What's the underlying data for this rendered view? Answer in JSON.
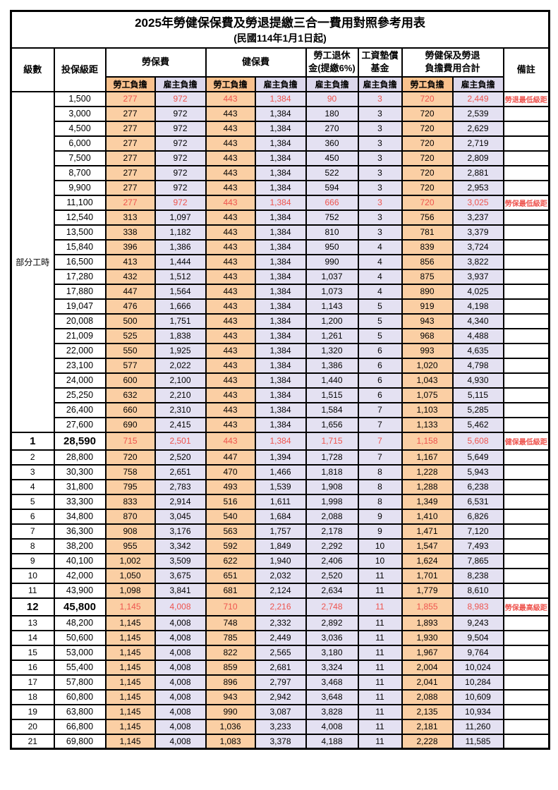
{
  "title": "2025年勞健保保費及勞退提繳三合一費用對照參考用表",
  "subtitle": "(民國114年1月1日起)",
  "colors": {
    "employee_column": "#f9c18d",
    "employer_column": "#dcd8ec",
    "employee_cell": "#fbcfa4",
    "employer_cell": "#e4e1f2",
    "highlight_text": "#ee544e",
    "border": "#000000"
  },
  "header": {
    "level": "級數",
    "bracket": "投保級距",
    "labor_insurance": "勞保費",
    "health_insurance": "健保費",
    "pension_line1": "勞工退休",
    "pension_line2": "金(提繳6%)",
    "wage_fund_line1": "工資墊償",
    "wage_fund_line2": "基金",
    "total_line1": "勞健保及勞退",
    "total_line2": "負擔費用合計",
    "remark": "備註",
    "employee": "勞工負擔",
    "employer": "雇主負擔"
  },
  "part_time_label": "部分工時",
  "part_time_row_count": 23,
  "rows": [
    {
      "level": "",
      "bracket": "1,500",
      "li_emp": "277",
      "li_er": "972",
      "hi_emp": "443",
      "hi_er": "1,384",
      "pension": "90",
      "fund": "3",
      "tot_emp": "720",
      "tot_er": "2,449",
      "remark": "勞退最低級距",
      "red": true,
      "big": false
    },
    {
      "level": "",
      "bracket": "3,000",
      "li_emp": "277",
      "li_er": "972",
      "hi_emp": "443",
      "hi_er": "1,384",
      "pension": "180",
      "fund": "3",
      "tot_emp": "720",
      "tot_er": "2,539",
      "remark": "",
      "red": false,
      "big": false
    },
    {
      "level": "",
      "bracket": "4,500",
      "li_emp": "277",
      "li_er": "972",
      "hi_emp": "443",
      "hi_er": "1,384",
      "pension": "270",
      "fund": "3",
      "tot_emp": "720",
      "tot_er": "2,629",
      "remark": "",
      "red": false,
      "big": false
    },
    {
      "level": "",
      "bracket": "6,000",
      "li_emp": "277",
      "li_er": "972",
      "hi_emp": "443",
      "hi_er": "1,384",
      "pension": "360",
      "fund": "3",
      "tot_emp": "720",
      "tot_er": "2,719",
      "remark": "",
      "red": false,
      "big": false
    },
    {
      "level": "",
      "bracket": "7,500",
      "li_emp": "277",
      "li_er": "972",
      "hi_emp": "443",
      "hi_er": "1,384",
      "pension": "450",
      "fund": "3",
      "tot_emp": "720",
      "tot_er": "2,809",
      "remark": "",
      "red": false,
      "big": false
    },
    {
      "level": "",
      "bracket": "8,700",
      "li_emp": "277",
      "li_er": "972",
      "hi_emp": "443",
      "hi_er": "1,384",
      "pension": "522",
      "fund": "3",
      "tot_emp": "720",
      "tot_er": "2,881",
      "remark": "",
      "red": false,
      "big": false
    },
    {
      "level": "",
      "bracket": "9,900",
      "li_emp": "277",
      "li_er": "972",
      "hi_emp": "443",
      "hi_er": "1,384",
      "pension": "594",
      "fund": "3",
      "tot_emp": "720",
      "tot_er": "2,953",
      "remark": "",
      "red": false,
      "big": false
    },
    {
      "level": "",
      "bracket": "11,100",
      "li_emp": "277",
      "li_er": "972",
      "hi_emp": "443",
      "hi_er": "1,384",
      "pension": "666",
      "fund": "3",
      "tot_emp": "720",
      "tot_er": "3,025",
      "remark": "勞保最低級距",
      "red": true,
      "big": false
    },
    {
      "level": "",
      "bracket": "12,540",
      "li_emp": "313",
      "li_er": "1,097",
      "hi_emp": "443",
      "hi_er": "1,384",
      "pension": "752",
      "fund": "3",
      "tot_emp": "756",
      "tot_er": "3,237",
      "remark": "",
      "red": false,
      "big": false
    },
    {
      "level": "",
      "bracket": "13,500",
      "li_emp": "338",
      "li_er": "1,182",
      "hi_emp": "443",
      "hi_er": "1,384",
      "pension": "810",
      "fund": "3",
      "tot_emp": "781",
      "tot_er": "3,379",
      "remark": "",
      "red": false,
      "big": false
    },
    {
      "level": "",
      "bracket": "15,840",
      "li_emp": "396",
      "li_er": "1,386",
      "hi_emp": "443",
      "hi_er": "1,384",
      "pension": "950",
      "fund": "4",
      "tot_emp": "839",
      "tot_er": "3,724",
      "remark": "",
      "red": false,
      "big": false
    },
    {
      "level": "",
      "bracket": "16,500",
      "li_emp": "413",
      "li_er": "1,444",
      "hi_emp": "443",
      "hi_er": "1,384",
      "pension": "990",
      "fund": "4",
      "tot_emp": "856",
      "tot_er": "3,822",
      "remark": "",
      "red": false,
      "big": false
    },
    {
      "level": "",
      "bracket": "17,280",
      "li_emp": "432",
      "li_er": "1,512",
      "hi_emp": "443",
      "hi_er": "1,384",
      "pension": "1,037",
      "fund": "4",
      "tot_emp": "875",
      "tot_er": "3,937",
      "remark": "",
      "red": false,
      "big": false
    },
    {
      "level": "",
      "bracket": "17,880",
      "li_emp": "447",
      "li_er": "1,564",
      "hi_emp": "443",
      "hi_er": "1,384",
      "pension": "1,073",
      "fund": "4",
      "tot_emp": "890",
      "tot_er": "4,025",
      "remark": "",
      "red": false,
      "big": false
    },
    {
      "level": "",
      "bracket": "19,047",
      "li_emp": "476",
      "li_er": "1,666",
      "hi_emp": "443",
      "hi_er": "1,384",
      "pension": "1,143",
      "fund": "5",
      "tot_emp": "919",
      "tot_er": "4,198",
      "remark": "",
      "red": false,
      "big": false
    },
    {
      "level": "",
      "bracket": "20,008",
      "li_emp": "500",
      "li_er": "1,751",
      "hi_emp": "443",
      "hi_er": "1,384",
      "pension": "1,200",
      "fund": "5",
      "tot_emp": "943",
      "tot_er": "4,340",
      "remark": "",
      "red": false,
      "big": false
    },
    {
      "level": "",
      "bracket": "21,009",
      "li_emp": "525",
      "li_er": "1,838",
      "hi_emp": "443",
      "hi_er": "1,384",
      "pension": "1,261",
      "fund": "5",
      "tot_emp": "968",
      "tot_er": "4,488",
      "remark": "",
      "red": false,
      "big": false
    },
    {
      "level": "",
      "bracket": "22,000",
      "li_emp": "550",
      "li_er": "1,925",
      "hi_emp": "443",
      "hi_er": "1,384",
      "pension": "1,320",
      "fund": "6",
      "tot_emp": "993",
      "tot_er": "4,635",
      "remark": "",
      "red": false,
      "big": false
    },
    {
      "level": "",
      "bracket": "23,100",
      "li_emp": "577",
      "li_er": "2,022",
      "hi_emp": "443",
      "hi_er": "1,384",
      "pension": "1,386",
      "fund": "6",
      "tot_emp": "1,020",
      "tot_er": "4,798",
      "remark": "",
      "red": false,
      "big": false
    },
    {
      "level": "",
      "bracket": "24,000",
      "li_emp": "600",
      "li_er": "2,100",
      "hi_emp": "443",
      "hi_er": "1,384",
      "pension": "1,440",
      "fund": "6",
      "tot_emp": "1,043",
      "tot_er": "4,930",
      "remark": "",
      "red": false,
      "big": false
    },
    {
      "level": "",
      "bracket": "25,250",
      "li_emp": "632",
      "li_er": "2,210",
      "hi_emp": "443",
      "hi_er": "1,384",
      "pension": "1,515",
      "fund": "6",
      "tot_emp": "1,075",
      "tot_er": "5,115",
      "remark": "",
      "red": false,
      "big": false
    },
    {
      "level": "",
      "bracket": "26,400",
      "li_emp": "660",
      "li_er": "2,310",
      "hi_emp": "443",
      "hi_er": "1,384",
      "pension": "1,584",
      "fund": "7",
      "tot_emp": "1,103",
      "tot_er": "5,285",
      "remark": "",
      "red": false,
      "big": false
    },
    {
      "level": "",
      "bracket": "27,600",
      "li_emp": "690",
      "li_er": "2,415",
      "hi_emp": "443",
      "hi_er": "1,384",
      "pension": "1,656",
      "fund": "7",
      "tot_emp": "1,133",
      "tot_er": "5,462",
      "remark": "",
      "red": false,
      "big": false
    },
    {
      "level": "1",
      "bracket": "28,590",
      "li_emp": "715",
      "li_er": "2,501",
      "hi_emp": "443",
      "hi_er": "1,384",
      "pension": "1,715",
      "fund": "7",
      "tot_emp": "1,158",
      "tot_er": "5,608",
      "remark": "健保最低級距",
      "red": true,
      "big": true
    },
    {
      "level": "2",
      "bracket": "28,800",
      "li_emp": "720",
      "li_er": "2,520",
      "hi_emp": "447",
      "hi_er": "1,394",
      "pension": "1,728",
      "fund": "7",
      "tot_emp": "1,167",
      "tot_er": "5,649",
      "remark": "",
      "red": false,
      "big": false
    },
    {
      "level": "3",
      "bracket": "30,300",
      "li_emp": "758",
      "li_er": "2,651",
      "hi_emp": "470",
      "hi_er": "1,466",
      "pension": "1,818",
      "fund": "8",
      "tot_emp": "1,228",
      "tot_er": "5,943",
      "remark": "",
      "red": false,
      "big": false
    },
    {
      "level": "4",
      "bracket": "31,800",
      "li_emp": "795",
      "li_er": "2,783",
      "hi_emp": "493",
      "hi_er": "1,539",
      "pension": "1,908",
      "fund": "8",
      "tot_emp": "1,288",
      "tot_er": "6,238",
      "remark": "",
      "red": false,
      "big": false
    },
    {
      "level": "5",
      "bracket": "33,300",
      "li_emp": "833",
      "li_er": "2,914",
      "hi_emp": "516",
      "hi_er": "1,611",
      "pension": "1,998",
      "fund": "8",
      "tot_emp": "1,349",
      "tot_er": "6,531",
      "remark": "",
      "red": false,
      "big": false
    },
    {
      "level": "6",
      "bracket": "34,800",
      "li_emp": "870",
      "li_er": "3,045",
      "hi_emp": "540",
      "hi_er": "1,684",
      "pension": "2,088",
      "fund": "9",
      "tot_emp": "1,410",
      "tot_er": "6,826",
      "remark": "",
      "red": false,
      "big": false
    },
    {
      "level": "7",
      "bracket": "36,300",
      "li_emp": "908",
      "li_er": "3,176",
      "hi_emp": "563",
      "hi_er": "1,757",
      "pension": "2,178",
      "fund": "9",
      "tot_emp": "1,471",
      "tot_er": "7,120",
      "remark": "",
      "red": false,
      "big": false
    },
    {
      "level": "8",
      "bracket": "38,200",
      "li_emp": "955",
      "li_er": "3,342",
      "hi_emp": "592",
      "hi_er": "1,849",
      "pension": "2,292",
      "fund": "10",
      "tot_emp": "1,547",
      "tot_er": "7,493",
      "remark": "",
      "red": false,
      "big": false
    },
    {
      "level": "9",
      "bracket": "40,100",
      "li_emp": "1,002",
      "li_er": "3,509",
      "hi_emp": "622",
      "hi_er": "1,940",
      "pension": "2,406",
      "fund": "10",
      "tot_emp": "1,624",
      "tot_er": "7,865",
      "remark": "",
      "red": false,
      "big": false
    },
    {
      "level": "10",
      "bracket": "42,000",
      "li_emp": "1,050",
      "li_er": "3,675",
      "hi_emp": "651",
      "hi_er": "2,032",
      "pension": "2,520",
      "fund": "11",
      "tot_emp": "1,701",
      "tot_er": "8,238",
      "remark": "",
      "red": false,
      "big": false
    },
    {
      "level": "11",
      "bracket": "43,900",
      "li_emp": "1,098",
      "li_er": "3,841",
      "hi_emp": "681",
      "hi_er": "2,124",
      "pension": "2,634",
      "fund": "11",
      "tot_emp": "1,779",
      "tot_er": "8,610",
      "remark": "",
      "red": false,
      "big": false
    },
    {
      "level": "12",
      "bracket": "45,800",
      "li_emp": "1,145",
      "li_er": "4,008",
      "hi_emp": "710",
      "hi_er": "2,216",
      "pension": "2,748",
      "fund": "11",
      "tot_emp": "1,855",
      "tot_er": "8,983",
      "remark": "勞保最高級距",
      "red": true,
      "big": true
    },
    {
      "level": "13",
      "bracket": "48,200",
      "li_emp": "1,145",
      "li_er": "4,008",
      "hi_emp": "748",
      "hi_er": "2,332",
      "pension": "2,892",
      "fund": "11",
      "tot_emp": "1,893",
      "tot_er": "9,243",
      "remark": "",
      "red": false,
      "big": false
    },
    {
      "level": "14",
      "bracket": "50,600",
      "li_emp": "1,145",
      "li_er": "4,008",
      "hi_emp": "785",
      "hi_er": "2,449",
      "pension": "3,036",
      "fund": "11",
      "tot_emp": "1,930",
      "tot_er": "9,504",
      "remark": "",
      "red": false,
      "big": false
    },
    {
      "level": "15",
      "bracket": "53,000",
      "li_emp": "1,145",
      "li_er": "4,008",
      "hi_emp": "822",
      "hi_er": "2,565",
      "pension": "3,180",
      "fund": "11",
      "tot_emp": "1,967",
      "tot_er": "9,764",
      "remark": "",
      "red": false,
      "big": false
    },
    {
      "level": "16",
      "bracket": "55,400",
      "li_emp": "1,145",
      "li_er": "4,008",
      "hi_emp": "859",
      "hi_er": "2,681",
      "pension": "3,324",
      "fund": "11",
      "tot_emp": "2,004",
      "tot_er": "10,024",
      "remark": "",
      "red": false,
      "big": false
    },
    {
      "level": "17",
      "bracket": "57,800",
      "li_emp": "1,145",
      "li_er": "4,008",
      "hi_emp": "896",
      "hi_er": "2,797",
      "pension": "3,468",
      "fund": "11",
      "tot_emp": "2,041",
      "tot_er": "10,284",
      "remark": "",
      "red": false,
      "big": false
    },
    {
      "level": "18",
      "bracket": "60,800",
      "li_emp": "1,145",
      "li_er": "4,008",
      "hi_emp": "943",
      "hi_er": "2,942",
      "pension": "3,648",
      "fund": "11",
      "tot_emp": "2,088",
      "tot_er": "10,609",
      "remark": "",
      "red": false,
      "big": false
    },
    {
      "level": "19",
      "bracket": "63,800",
      "li_emp": "1,145",
      "li_er": "4,008",
      "hi_emp": "990",
      "hi_er": "3,087",
      "pension": "3,828",
      "fund": "11",
      "tot_emp": "2,135",
      "tot_er": "10,934",
      "remark": "",
      "red": false,
      "big": false
    },
    {
      "level": "20",
      "bracket": "66,800",
      "li_emp": "1,145",
      "li_er": "4,008",
      "hi_emp": "1,036",
      "hi_er": "3,233",
      "pension": "4,008",
      "fund": "11",
      "tot_emp": "2,181",
      "tot_er": "11,260",
      "remark": "",
      "red": false,
      "big": false
    },
    {
      "level": "21",
      "bracket": "69,800",
      "li_emp": "1,145",
      "li_er": "4,008",
      "hi_emp": "1,083",
      "hi_er": "3,378",
      "pension": "4,188",
      "fund": "11",
      "tot_emp": "2,228",
      "tot_er": "11,585",
      "remark": "",
      "red": false,
      "big": false
    }
  ]
}
